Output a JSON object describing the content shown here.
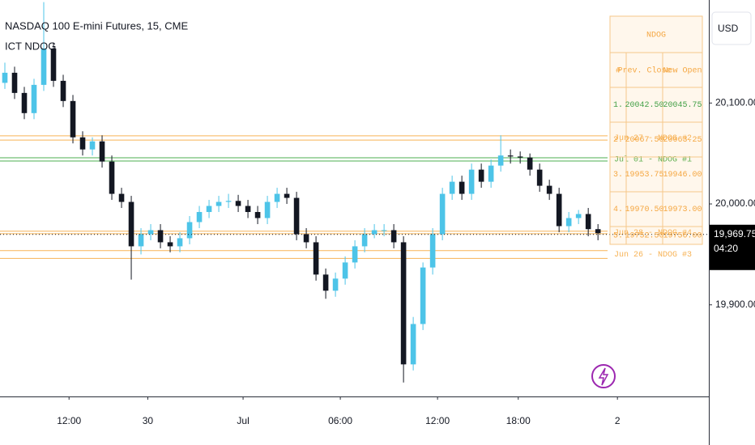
{
  "chart_data": {
    "type": "candlestick",
    "title": "NASDAQ 100 E-mini Futures, 15, CME",
    "indicator": "ICT NDOG",
    "currency": "USD",
    "up_color": "#4dc4e8",
    "down_color": "#131722",
    "open": [
      20120,
      20130,
      20110,
      20090,
      20118,
      20154,
      20122,
      20102,
      20066,
      20054,
      20062,
      20042,
      20010,
      20002,
      19958,
      19970,
      19974,
      19962,
      19958,
      19966,
      19982,
      19992,
      19998,
      20002,
      20003,
      19998,
      19992,
      19986,
      20002,
      20010,
      20006,
      19970,
      19962,
      19930,
      19914,
      19926,
      19942,
      19958,
      19970,
      19974,
      19974,
      19962,
      19841,
      19881,
      19937,
      19970,
      20010,
      20022,
      20010,
      20034,
      20022,
      20038,
      20048,
      20047,
      20046,
      20034,
      20018,
      20010,
      19978,
      19986,
      19990,
      19975
    ],
    "high": [
      20140,
      20136,
      20116,
      20124,
      20200,
      20160,
      20128,
      20108,
      20072,
      20066,
      20068,
      20048,
      20016,
      20008,
      19976,
      19980,
      19980,
      19968,
      19972,
      19988,
      19998,
      20004,
      20008,
      20010,
      20009,
      20004,
      19998,
      20008,
      20016,
      20016,
      20012,
      19976,
      19968,
      19936,
      19932,
      19948,
      19964,
      19976,
      19980,
      19980,
      19980,
      19968,
      19888,
      19942,
      19976,
      20016,
      20028,
      20028,
      20040,
      20040,
      20044,
      20068,
      20054,
      20052,
      20050,
      20040,
      20024,
      20016,
      19992,
      19994,
      19996,
      19980
    ],
    "low": [
      20114,
      20104,
      20084,
      20084,
      20112,
      20116,
      20096,
      20060,
      20048,
      20048,
      20036,
      20004,
      19996,
      19925,
      19950,
      19964,
      19956,
      19952,
      19952,
      19960,
      19976,
      19986,
      19992,
      19996,
      19992,
      19986,
      19980,
      19980,
      19996,
      20000,
      19964,
      19956,
      19924,
      19906,
      19908,
      19920,
      19936,
      19952,
      19966,
      19968,
      19956,
      19823,
      19835,
      19875,
      19930,
      19964,
      20004,
      20004,
      20004,
      20016,
      20016,
      20032,
      20040,
      20040,
      20028,
      20012,
      20004,
      19972,
      19972,
      19980,
      19968,
      19964
    ],
    "close": [
      20130,
      20110,
      20090,
      20118,
      20154,
      20122,
      20102,
      20066,
      20054,
      20062,
      20042,
      20010,
      20002,
      19958,
      19970,
      19974,
      19962,
      19958,
      19966,
      19982,
      19992,
      19998,
      20002,
      20003,
      19998,
      19992,
      19986,
      20002,
      20010,
      20006,
      19970,
      19962,
      19930,
      19914,
      19926,
      19942,
      19958,
      19970,
      19974,
      19974,
      19962,
      19841,
      19881,
      19937,
      19970,
      20010,
      20022,
      20010,
      20034,
      20022,
      20038,
      20048,
      20047,
      20046,
      20034,
      20018,
      20010,
      19978,
      19986,
      19990,
      19975,
      19971
    ],
    "xlim": [
      -0.5,
      72.4
    ],
    "xticks": [
      {
        "value": 6.6,
        "label": "12:00"
      },
      {
        "value": 14.7,
        "label": "30"
      },
      {
        "value": 24.5,
        "label": "Jul"
      },
      {
        "value": 34.5,
        "label": "06:00"
      },
      {
        "value": 44.5,
        "label": "12:00"
      },
      {
        "value": 52.8,
        "label": "18:00"
      },
      {
        "value": 63,
        "label": "2"
      }
    ],
    "ylim": [
      19809.2,
      20202.1
    ],
    "yticks": [
      {
        "value": 20100,
        "label": "20,100.00"
      },
      {
        "value": 20000,
        "label": "20,000.00"
      },
      {
        "value": 19900,
        "label": "19,900.00"
      }
    ],
    "last_price": {
      "value": 19969.75,
      "label": "19,969.75"
    },
    "countdown": "04:20",
    "levels": [
      {
        "label": "Jul 01 - NDOG #1",
        "prev_close": 20042.5,
        "new_open": 20045.75,
        "color": "#4caf50"
      },
      {
        "label": "Jun 27 - NDOG #2",
        "prev_close": 20067.5,
        "new_open": 20063.25,
        "color": "#f7b356"
      },
      {
        "label": "Jun 26 - NDOG #3",
        "prev_close": 19953.75,
        "new_open": 19946.0,
        "color": "#f7b356"
      },
      {
        "label": "Jun 28 - NDOG #4",
        "prev_close": 19970.5,
        "new_open": 19973.0,
        "color": "#f7b356"
      }
    ],
    "table": {
      "title": "NDOG",
      "columns": [
        "#",
        "Prev. Close",
        "New Open"
      ],
      "rows": [
        [
          "1.",
          "20042.50",
          "20045.75"
        ],
        [
          "2.",
          "20067.50",
          "20063.25"
        ],
        [
          "3.",
          "19953.75",
          "19946.00"
        ],
        [
          "4.",
          "19970.50",
          "19973.00"
        ],
        [
          "5.",
          "19752.50",
          "19756.00"
        ]
      ]
    }
  }
}
